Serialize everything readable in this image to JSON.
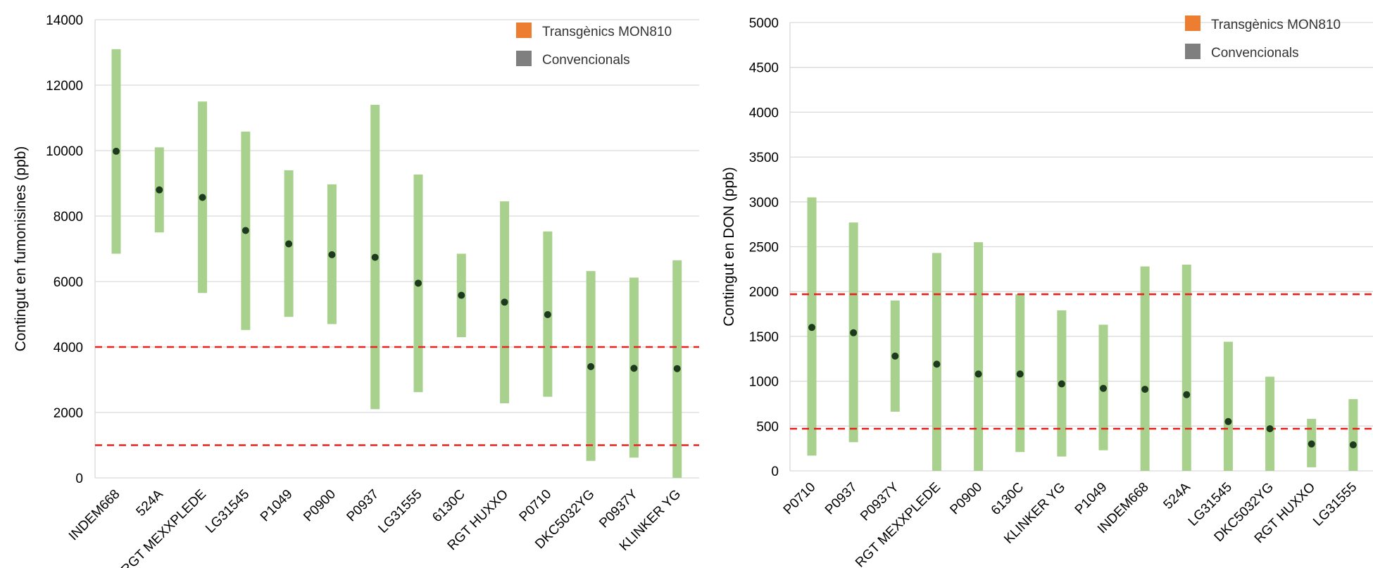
{
  "colors": {
    "bar": "#a9d18e",
    "dot": "#1e3a1e",
    "threshold": "#e8221e",
    "gridline": "#d9d9d9",
    "transgenic": "#ed7d31",
    "conventional": "#7f7f7f",
    "axis_text": "#000000"
  },
  "chart_data": [
    {
      "type": "range-dot",
      "ylabel": "Contingut en fumonisines (ppb)",
      "ylim": [
        0,
        14000
      ],
      "yticks": [
        0,
        2000,
        4000,
        6000,
        8000,
        10000,
        12000,
        14000
      ],
      "grid": true,
      "legend": {
        "placement": "top-right",
        "entries": [
          {
            "label": "Transgènics MON810",
            "color": "#ed7d31"
          },
          {
            "label": "Convencionals",
            "color": "#7f7f7f"
          }
        ]
      },
      "thresholds": [
        4000,
        1000
      ],
      "categories": [
        "INDEM668",
        "524A",
        "RGT MEXXPLEDE",
        "LG31545",
        "P1049",
        "P0900",
        "P0937",
        "LG31555",
        "6130C",
        "RGT HUXXO",
        "P0710",
        "DKC5032YG",
        "P0937Y",
        "KLINKER YG"
      ],
      "transgenic": [
        false,
        false,
        false,
        false,
        false,
        false,
        false,
        false,
        false,
        false,
        false,
        true,
        true,
        true
      ],
      "low": [
        6850,
        7500,
        5650,
        4520,
        4920,
        4700,
        2100,
        2620,
        4300,
        2280,
        2480,
        520,
        620,
        0
      ],
      "high": [
        13100,
        10100,
        11500,
        10580,
        9400,
        8970,
        11400,
        9270,
        6850,
        8450,
        7530,
        6320,
        6120,
        6650
      ],
      "mean": [
        9980,
        8800,
        8570,
        7560,
        7150,
        6820,
        6740,
        5950,
        5580,
        5370,
        4990,
        3400,
        3350,
        3340
      ]
    },
    {
      "type": "range-dot",
      "ylabel": "Contingut en DON (ppb)",
      "ylim": [
        0,
        5000
      ],
      "yticks": [
        0,
        500,
        1000,
        1500,
        2000,
        2500,
        3000,
        3500,
        4000,
        4500,
        5000
      ],
      "grid": true,
      "legend": {
        "placement": "top-right",
        "entries": [
          {
            "label": "Transgènics MON810",
            "color": "#ed7d31"
          },
          {
            "label": "Convencionals",
            "color": "#7f7f7f"
          }
        ]
      },
      "thresholds": [
        1970,
        470
      ],
      "categories": [
        "P0710",
        "P0937",
        "P0937Y",
        "RGT MEXXPLEDE",
        "P0900",
        "6130C",
        "KLINKER YG",
        "P1049",
        "INDEM668",
        "524A",
        "LG31545",
        "DKC5032YG",
        "RGT HUXXO",
        "LG31555"
      ],
      "transgenic": [
        false,
        false,
        true,
        false,
        false,
        false,
        true,
        false,
        false,
        false,
        false,
        true,
        false,
        false
      ],
      "low": [
        170,
        320,
        660,
        0,
        0,
        210,
        160,
        230,
        0,
        0,
        0,
        0,
        40,
        0
      ],
      "high": [
        3050,
        2770,
        1900,
        2430,
        2550,
        1970,
        1790,
        1630,
        2280,
        2300,
        1440,
        1050,
        580,
        800
      ],
      "mean": [
        1600,
        1540,
        1280,
        1190,
        1080,
        1080,
        970,
        920,
        910,
        850,
        550,
        470,
        300,
        290
      ]
    }
  ]
}
